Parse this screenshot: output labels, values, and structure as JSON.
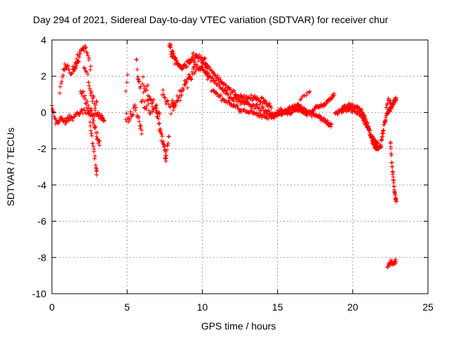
{
  "chart_data": {
    "type": "scatter",
    "title": "Day 294 of 2021, Sidereal Day-to-day VTEC variation (SDTVAR) for receiver chur",
    "xlabel": "GPS time / hours",
    "ylabel": "SDTVAR / TECUs",
    "xlim": [
      0,
      25
    ],
    "ylim": [
      -10,
      4
    ],
    "xticks": [
      0,
      5,
      10,
      15,
      20,
      25
    ],
    "yticks": [
      -10,
      -8,
      -6,
      -4,
      -2,
      0,
      2,
      4
    ],
    "grid": true,
    "marker": "+",
    "series": [
      {
        "name": "SDTVAR",
        "color": "#ff0000",
        "tracks": [
          {
            "x": [
              0.0,
              0.3,
              0.6,
              0.9,
              1.2,
              1.6,
              2.0,
              2.5,
              3.0,
              3.3,
              3.5
            ],
            "y": [
              0.3,
              -0.6,
              -0.4,
              -0.5,
              -0.3,
              -0.1,
              0.0,
              0.0,
              -0.1,
              -0.3,
              -0.5
            ],
            "n": 9,
            "s": 0.16
          },
          {
            "x": [
              0.5,
              0.8,
              1.0,
              1.3,
              1.6,
              1.8
            ],
            "y": [
              1.0,
              2.4,
              2.5,
              2.2,
              2.6,
              2.9
            ],
            "n": 7,
            "s": 0.18
          },
          {
            "x": [
              1.4,
              1.7,
              2.0,
              2.3,
              2.6
            ],
            "y": [
              2.3,
              3.0,
              3.5,
              3.6,
              2.4
            ],
            "n": 7,
            "s": 0.22
          },
          {
            "x": [
              1.9,
              2.2,
              2.5,
              2.8,
              3.0,
              3.2
            ],
            "y": [
              1.2,
              0.8,
              0.2,
              -0.6,
              -1.4,
              -2.0
            ],
            "n": 8,
            "s": 0.25
          },
          {
            "x": [
              2.5,
              2.7,
              2.9,
              3.0
            ],
            "y": [
              -0.5,
              -1.6,
              -2.8,
              -3.5
            ],
            "n": 6,
            "s": 0.2
          },
          {
            "x": [
              2.1,
              2.4,
              2.6,
              2.8,
              3.0
            ],
            "y": [
              2.8,
              1.8,
              1.2,
              0.6,
              0.2
            ],
            "n": 6,
            "s": 0.3
          },
          {
            "x": [
              4.9,
              5.2,
              5.5,
              5.8,
              6.0
            ],
            "y": [
              -0.6,
              -0.2,
              0.5,
              -0.4,
              -1.2
            ],
            "n": 7,
            "s": 0.3
          },
          {
            "x": [
              4.9,
              5.1
            ],
            "y": [
              1.5,
              2.2
            ],
            "n": 3,
            "s": 0.3
          },
          {
            "x": [
              5.6,
              5.8,
              6.1,
              6.4,
              6.7
            ],
            "y": [
              2.7,
              1.5,
              0.6,
              0.2,
              0.4
            ],
            "n": 7,
            "s": 0.35
          },
          {
            "x": [
              6.0,
              6.3,
              6.6,
              6.9,
              7.2
            ],
            "y": [
              1.6,
              1.2,
              0.6,
              0.2,
              -0.4
            ],
            "n": 7,
            "s": 0.35
          },
          {
            "x": [
              6.9,
              7.1,
              7.3,
              7.5,
              7.6,
              7.8
            ],
            "y": [
              0.4,
              -0.5,
              -1.4,
              -2.1,
              -2.5,
              -1.2
            ],
            "n": 8,
            "s": 0.25
          },
          {
            "x": [
              7.3,
              7.6,
              7.9,
              8.2
            ],
            "y": [
              1.3,
              0.6,
              0.2,
              0.5
            ],
            "n": 6,
            "s": 0.25
          },
          {
            "x": [
              7.8,
              8.0,
              8.3,
              8.6,
              9.0,
              9.4,
              9.8,
              10.3
            ],
            "y": [
              3.8,
              3.2,
              2.8,
              2.4,
              2.6,
              3.0,
              3.0,
              2.6
            ],
            "n": 14,
            "s": 0.22
          },
          {
            "x": [
              8.0,
              8.4,
              8.8,
              9.2,
              9.6,
              10.0,
              10.4
            ],
            "y": [
              0.3,
              0.8,
              1.5,
              2.0,
              2.6,
              2.4,
              2.0
            ],
            "n": 12,
            "s": 0.25
          },
          {
            "x": [
              10.0,
              10.8,
              11.6,
              12.4,
              13.2,
              14.0,
              14.6
            ],
            "y": [
              2.8,
              2.1,
              1.4,
              0.9,
              0.8,
              0.7,
              0.3
            ],
            "n": 18,
            "s": 0.13
          },
          {
            "x": [
              10.2,
              11.0,
              11.8,
              12.6,
              13.4,
              14.2,
              14.8
            ],
            "y": [
              2.2,
              1.6,
              0.9,
              0.6,
              0.4,
              0.1,
              -0.2
            ],
            "n": 18,
            "s": 0.13
          },
          {
            "x": [
              10.6,
              11.4,
              12.2,
              13.0,
              13.8,
              14.6
            ],
            "y": [
              1.3,
              0.7,
              0.3,
              0.0,
              -0.1,
              -0.3
            ],
            "n": 16,
            "s": 0.12
          },
          {
            "x": [
              14.6,
              15.2,
              15.8,
              16.4,
              17.0,
              17.6,
              18.2,
              18.8
            ],
            "y": [
              -0.2,
              0.1,
              0.0,
              0.2,
              -0.1,
              0.3,
              0.5,
              1.0
            ],
            "n": 18,
            "s": 0.1
          },
          {
            "x": [
              14.6,
              15.2,
              15.8,
              16.4,
              17.0,
              17.6,
              18.2,
              18.6
            ],
            "y": [
              -0.3,
              -0.1,
              0.2,
              0.4,
              0.0,
              -0.2,
              -0.5,
              -0.7
            ],
            "n": 18,
            "s": 0.1
          },
          {
            "x": [
              16.2,
              16.7,
              17.2
            ],
            "y": [
              0.3,
              0.9,
              1.1
            ],
            "n": 6,
            "s": 0.12
          },
          {
            "x": [
              18.8,
              19.4,
              20.0,
              20.6,
              21.0,
              21.3,
              21.6,
              21.9
            ],
            "y": [
              -0.1,
              0.3,
              0.4,
              0.1,
              -0.7,
              -1.6,
              -2.0,
              -1.9
            ],
            "n": 18,
            "s": 0.11
          },
          {
            "x": [
              19.2,
              19.8,
              20.4,
              20.9,
              21.3,
              21.7
            ],
            "y": [
              0.0,
              0.2,
              0.0,
              -0.7,
              -1.4,
              -1.8
            ],
            "n": 14,
            "s": 0.11
          },
          {
            "x": [
              21.9,
              22.1,
              22.3,
              22.5,
              22.7,
              22.9
            ],
            "y": [
              -1.6,
              -0.6,
              0.0,
              0.2,
              0.5,
              0.8
            ],
            "n": 14,
            "s": 0.12
          },
          {
            "x": [
              22.2,
              22.4,
              22.6
            ],
            "y": [
              0.3,
              0.7,
              0.4
            ],
            "n": 5,
            "s": 0.15
          },
          {
            "x": [
              22.5,
              22.6,
              22.7,
              22.8,
              22.9
            ],
            "y": [
              -1.5,
              -2.8,
              -3.7,
              -4.5,
              -4.9
            ],
            "n": 9,
            "s": 0.12
          },
          {
            "x": [
              22.3,
              22.5,
              22.7,
              22.9
            ],
            "y": [
              -8.4,
              -8.3,
              -8.2,
              -8.3
            ],
            "n": 7,
            "s": 0.12
          }
        ]
      }
    ]
  }
}
